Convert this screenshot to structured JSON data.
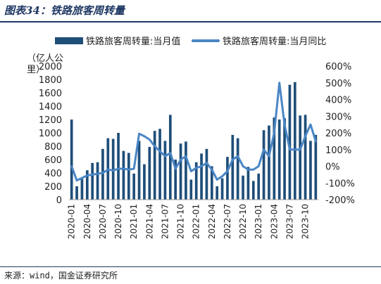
{
  "header": {
    "title": "图表34：铁路旅客周转量"
  },
  "footer": {
    "source": "来源：wind，国金证券研究所"
  },
  "chart_data": {
    "type": "bar",
    "unit_label": "（亿人公里）",
    "series": [
      {
        "name": "铁路旅客周转量:当月值",
        "type": "bar",
        "axis": "left",
        "color": "#1f4e79",
        "values": [
          1200,
          200,
          310,
          440,
          550,
          560,
          760,
          920,
          910,
          1000,
          730,
          700,
          390,
          880,
          530,
          790,
          1030,
          1060,
          880,
          1270,
          600,
          840,
          870,
          300,
          560,
          690,
          760,
          500,
          200,
          320,
          640,
          970,
          920,
          360,
          490,
          280,
          390,
          1040,
          1110,
          1230,
          1200,
          1220,
          1720,
          1760,
          1260,
          1270,
          880,
          970
        ]
      },
      {
        "name": "铁路旅客周转量:当月同比",
        "type": "line",
        "axis": "right",
        "color": "#4a86c5",
        "values": [
          0,
          -85,
          -70,
          -55,
          -50,
          -45,
          -40,
          -20,
          -25,
          -15,
          -15,
          -20,
          -15,
          195,
          180,
          160,
          120,
          90,
          60,
          80,
          -15,
          40,
          60,
          -30,
          -10,
          0,
          20,
          -20,
          -80,
          -60,
          -30,
          40,
          60,
          0,
          -20,
          -20,
          0,
          100,
          60,
          200,
          500,
          250,
          100,
          100,
          100,
          180,
          250,
          150
        ]
      }
    ],
    "x_tick_labels": [
      "2020-01",
      "2020-04",
      "2020-07",
      "2020-10",
      "2021-01",
      "2021-04",
      "2021-07",
      "2021-10",
      "2022-01",
      "2022-04",
      "2022-07",
      "2022-10",
      "2023-01",
      "2023-04",
      "2023-07",
      "2023-10"
    ],
    "y_left": {
      "min": 0,
      "max": 2000,
      "step": 200,
      "tick_labels": [
        "0",
        "200",
        "400",
        "600",
        "800",
        "1000",
        "1200",
        "1400",
        "1600",
        "1800",
        "2000"
      ]
    },
    "y_right": {
      "min": -200,
      "max": 600,
      "step": 100,
      "tick_labels": [
        "-200%",
        "-100%",
        "0%",
        "100%",
        "200%",
        "300%",
        "400%",
        "500%",
        "600%"
      ]
    },
    "legend_position": "top",
    "grid": false
  }
}
